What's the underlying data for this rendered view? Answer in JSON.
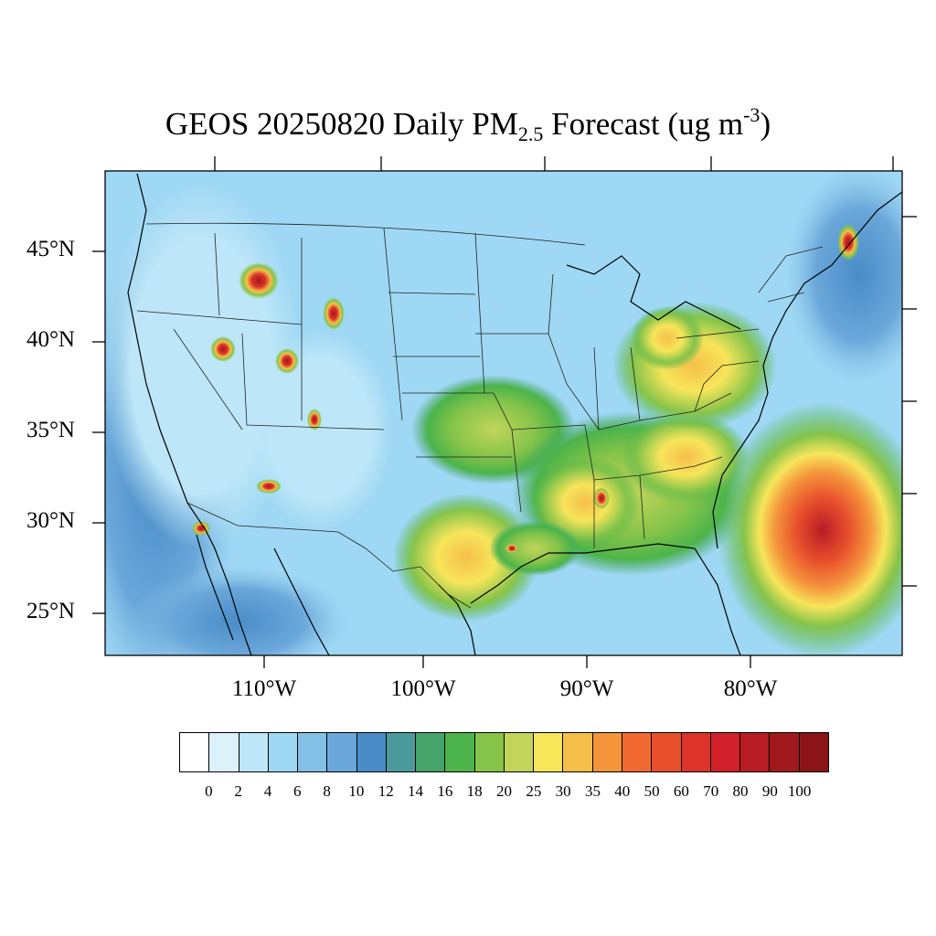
{
  "title": {
    "prefix": "GEOS 20250820 Daily PM",
    "subscript": "2.5",
    "middle": " Forecast (ug m",
    "superscript": "-3",
    "suffix": ")"
  },
  "map": {
    "lat_labels": [
      "45°N",
      "40°N",
      "35°N",
      "30°N",
      "25°N"
    ],
    "lon_labels": [
      "110°W",
      "100°W",
      "90°W",
      "80°W"
    ],
    "background_level_color": "#a7d8f2"
  },
  "colorbar": {
    "colors": [
      "#ffffff",
      "#dcf1fb",
      "#bde6f8",
      "#9fd8f4",
      "#84c0e6",
      "#6aa7da",
      "#4a8cc8",
      "#4a9a9c",
      "#45a46a",
      "#4cb44a",
      "#86c44a",
      "#c2d55a",
      "#f7e55a",
      "#f6bf4a",
      "#f4953c",
      "#f26a32",
      "#e8502c",
      "#dc3428",
      "#d1202a",
      "#b81c24",
      "#a0191e",
      "#8a1418"
    ],
    "tick_labels": [
      "0",
      "2",
      "4",
      "6",
      "8",
      "10",
      "12",
      "14",
      "16",
      "18",
      "20",
      "25",
      "30",
      "35",
      "40",
      "50",
      "60",
      "70",
      "80",
      "90",
      "100"
    ]
  }
}
